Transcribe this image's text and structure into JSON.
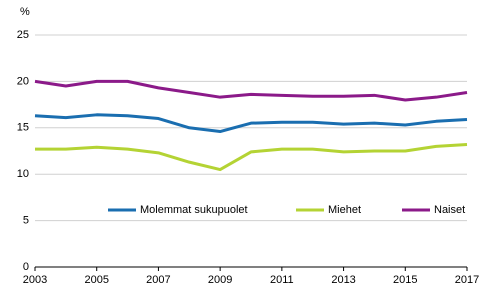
{
  "chart_data": {
    "type": "line",
    "y_label": "%",
    "x": [
      2003,
      2004,
      2005,
      2006,
      2007,
      2008,
      2009,
      2010,
      2011,
      2012,
      2013,
      2014,
      2015,
      2016,
      2017
    ],
    "series": [
      {
        "name": "Molemmat sukupuolet",
        "color": "#1a6eb0",
        "values": [
          16.3,
          16.1,
          16.4,
          16.3,
          16.0,
          15.0,
          14.6,
          15.5,
          15.6,
          15.6,
          15.4,
          15.5,
          15.3,
          15.7,
          15.9
        ]
      },
      {
        "name": "Miehet",
        "color": "#b4d334",
        "values": [
          12.7,
          12.7,
          12.9,
          12.7,
          12.3,
          11.3,
          10.5,
          12.4,
          12.7,
          12.7,
          12.4,
          12.5,
          12.5,
          13.0,
          13.2
        ]
      },
      {
        "name": "Naiset",
        "color": "#8b1a89",
        "values": [
          20.0,
          19.5,
          20.0,
          20.0,
          19.3,
          18.8,
          18.3,
          18.6,
          18.5,
          18.4,
          18.4,
          18.5,
          18.0,
          18.3,
          18.8
        ]
      }
    ],
    "xlim": [
      2003,
      2017
    ],
    "xticks": [
      2003,
      2005,
      2007,
      2009,
      2011,
      2013,
      2015,
      2017
    ],
    "ylim": [
      0,
      25
    ],
    "yticks": [
      0,
      5,
      10,
      15,
      20,
      25
    ],
    "grid": true
  }
}
